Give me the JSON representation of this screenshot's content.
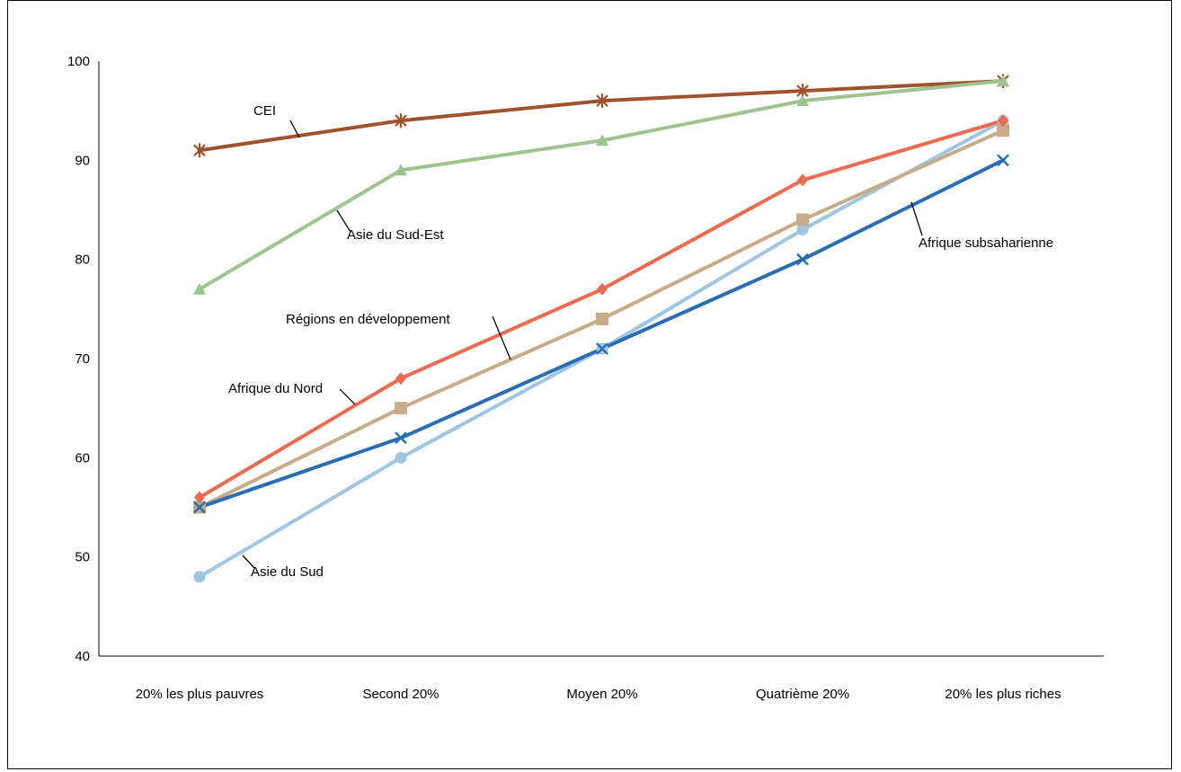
{
  "chart_data": {
    "type": "line",
    "title": "",
    "xlabel": "",
    "ylabel": "",
    "categories": [
      "20% les plus pauvres",
      "Second 20%",
      "Moyen 20%",
      "Quatrième 20%",
      "20% les plus riches"
    ],
    "ylim": [
      40,
      100
    ],
    "yticks": [
      40,
      50,
      60,
      70,
      80,
      90,
      100
    ],
    "grid": false,
    "legend": "inline labels",
    "series": [
      {
        "name": "CEI",
        "color": "#a0522d",
        "marker": "asterisk",
        "values": [
          91,
          94,
          96,
          97,
          98
        ]
      },
      {
        "name": "Asie du Sud-Est",
        "color": "#9dc48e",
        "marker": "triangle",
        "values": [
          77,
          89,
          92,
          96,
          98
        ]
      },
      {
        "name": "Afrique du Nord",
        "color": "#ec6a4f",
        "marker": "diamond",
        "values": [
          56,
          68,
          77,
          88,
          94
        ]
      },
      {
        "name": "Régions en développement",
        "color": "#c8ab88",
        "marker": "square",
        "values": [
          55,
          65,
          74,
          84,
          93
        ]
      },
      {
        "name": "Afrique subsaharienne",
        "color": "#2a6db3",
        "marker": "x",
        "values": [
          55,
          62,
          71,
          80,
          90
        ]
      },
      {
        "name": "Asie du Sud",
        "color": "#9ec6e0",
        "marker": "circle",
        "values": [
          48,
          60,
          71,
          83,
          94
        ]
      }
    ]
  }
}
